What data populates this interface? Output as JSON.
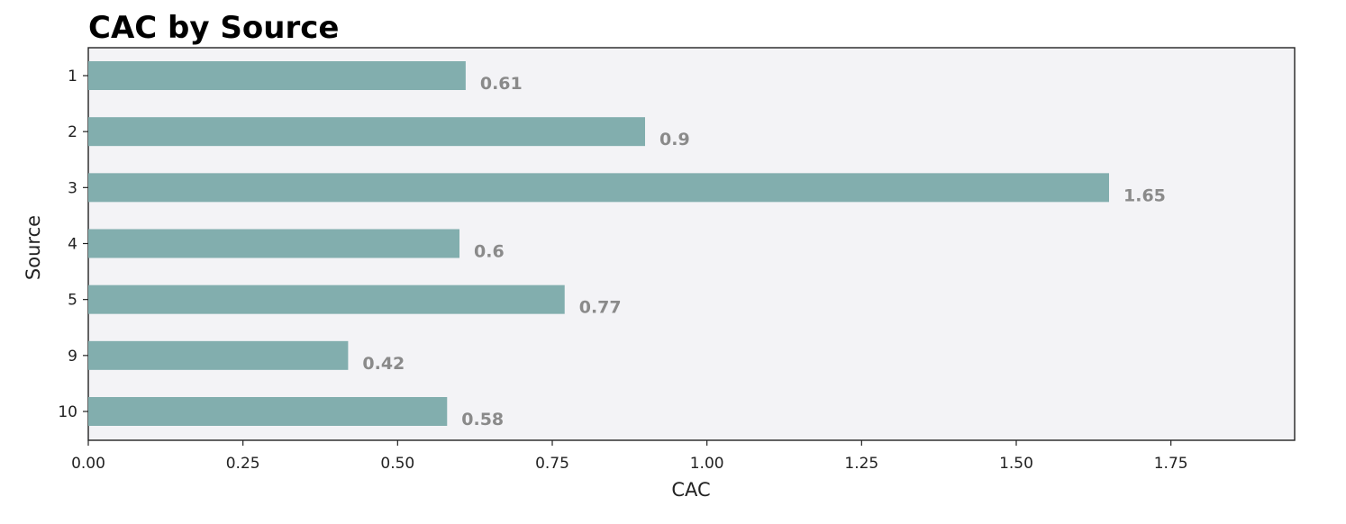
{
  "chart_data": {
    "type": "bar",
    "orientation": "horizontal",
    "title": "CAC by Source",
    "xlabel": "CAC",
    "ylabel": "Source",
    "categories": [
      "1",
      "2",
      "3",
      "4",
      "5",
      "9",
      "10"
    ],
    "values": [
      0.61,
      0.9,
      1.65,
      0.6,
      0.77,
      0.42,
      0.58
    ],
    "value_labels": [
      "0.61",
      "0.9",
      "1.65",
      "0.6",
      "0.77",
      "0.42",
      "0.58"
    ],
    "xlim": [
      0,
      1.95
    ],
    "xticks": [
      0,
      0.25,
      0.5,
      0.75,
      1.0,
      1.25,
      1.5,
      1.75
    ],
    "xtick_labels": [
      "0.00",
      "0.25",
      "0.50",
      "0.75",
      "1.00",
      "1.25",
      "1.50",
      "1.75"
    ],
    "grid": false,
    "legend": "none",
    "colors": {
      "bar": "#82aeae",
      "plot_background": "#f3f3f6",
      "data_label": "#8a8a8a"
    }
  }
}
